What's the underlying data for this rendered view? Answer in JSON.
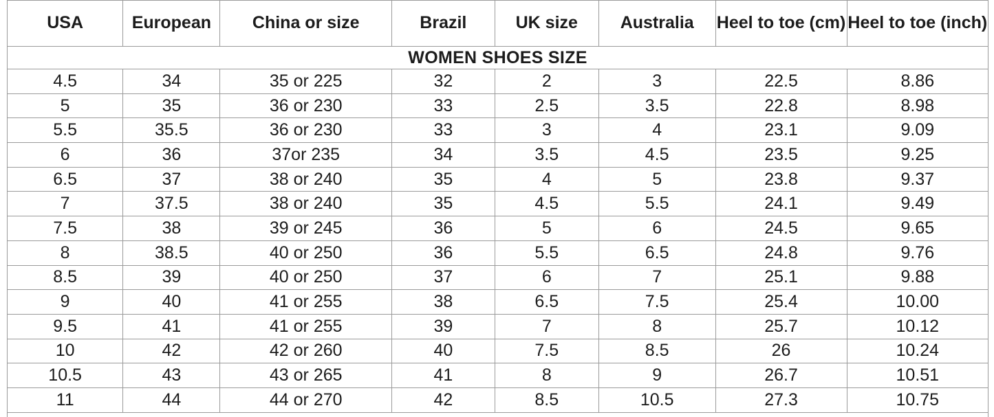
{
  "title": "WOMEN SHOES SIZE",
  "colors": {
    "background": "#ffffff",
    "border": "#9a9a9a",
    "text": "#1c1c1c"
  },
  "chart_data": {
    "type": "table",
    "title": "WOMEN SHOES SIZE",
    "columns": [
      "USA",
      "European",
      "China or size",
      "Brazil",
      "UK size",
      "Australia",
      "Heel to toe (cm)",
      "Heel to toe (inch)"
    ],
    "rows": [
      [
        "4.5",
        "34",
        "35 or 225",
        "32",
        "2",
        "3",
        "22.5",
        "8.86"
      ],
      [
        "5",
        "35",
        "36 or 230",
        "33",
        "2.5",
        "3.5",
        "22.8",
        "8.98"
      ],
      [
        "5.5",
        "35.5",
        "36 or 230",
        "33",
        "3",
        "4",
        "23.1",
        "9.09"
      ],
      [
        "6",
        "36",
        "37or 235",
        "34",
        "3.5",
        "4.5",
        "23.5",
        "9.25"
      ],
      [
        "6.5",
        "37",
        "38 or 240",
        "35",
        "4",
        "5",
        "23.8",
        "9.37"
      ],
      [
        "7",
        "37.5",
        "38 or 240",
        "35",
        "4.5",
        "5.5",
        "24.1",
        "9.49"
      ],
      [
        "7.5",
        "38",
        "39 or 245",
        "36",
        "5",
        "6",
        "24.5",
        "9.65"
      ],
      [
        "8",
        "38.5",
        "40 or 250",
        "36",
        "5.5",
        "6.5",
        "24.8",
        "9.76"
      ],
      [
        "8.5",
        "39",
        "40 or 250",
        "37",
        "6",
        "7",
        "25.1",
        "9.88"
      ],
      [
        "9",
        "40",
        "41 or 255",
        "38",
        "6.5",
        "7.5",
        "25.4",
        "10.00"
      ],
      [
        "9.5",
        "41",
        "41 or 255",
        "39",
        "7",
        "8",
        "25.7",
        "10.12"
      ],
      [
        "10",
        "42",
        "42 or 260",
        "40",
        "7.5",
        "8.5",
        "26",
        "10.24"
      ],
      [
        "10.5",
        "43",
        "43 or 265",
        "41",
        "8",
        "9",
        "26.7",
        "10.51"
      ],
      [
        "11",
        "44",
        "44 or 270",
        "42",
        "8.5",
        "10.5",
        "27.3",
        "10.75"
      ]
    ]
  }
}
